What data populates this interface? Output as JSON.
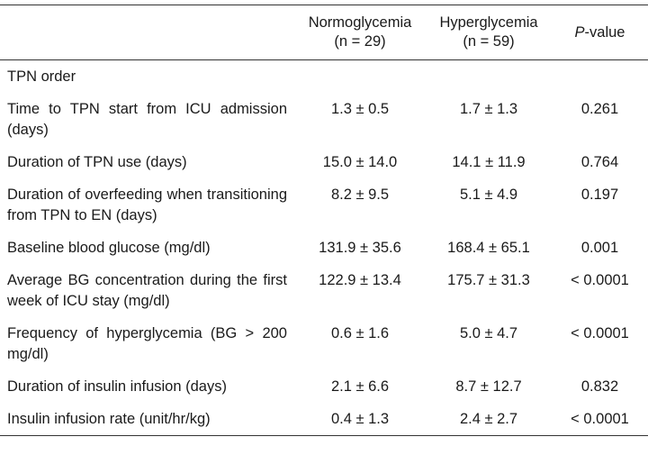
{
  "table": {
    "columns": [
      {
        "name": "Normoglycemia",
        "n": "(n = 29)"
      },
      {
        "name": "Hyperglycemia",
        "n": "(n = 59)"
      },
      {
        "italic": "P",
        "rest": "-value"
      }
    ],
    "section": "TPN order",
    "rows": [
      [
        "Time to TPN start from ICU admission (days)",
        "1.3 ± 0.5",
        "1.7 ± 1.3",
        "0.261"
      ],
      [
        "Duration of TPN use (days)",
        "15.0 ± 14.0",
        "14.1 ± 11.9",
        "0.764"
      ],
      [
        "Duration of overfeeding when transitioning from TPN to EN (days)",
        "8.2 ± 9.5",
        "5.1 ± 4.9",
        "0.197"
      ],
      [
        "Baseline blood glucose (mg/dl)",
        "131.9 ± 35.6",
        "168.4 ± 65.1",
        "0.001"
      ],
      [
        "Average BG concentration during the first week of ICU stay (mg/dl)",
        "122.9 ± 13.4",
        "175.7 ± 31.3",
        "< 0.0001"
      ],
      [
        "Frequency of hyperglycemia (BG > 200 mg/dl)",
        "0.6 ± 1.6",
        "5.0 ± 4.7",
        "< 0.0001"
      ],
      [
        "Duration of insulin infusion (days)",
        "2.1 ± 6.6",
        "8.7 ± 12.7",
        "0.832"
      ],
      [
        "Insulin infusion rate (unit/hr/kg)",
        "0.4 ± 1.3",
        "2.4 ± 2.7",
        "< 0.0001"
      ]
    ]
  }
}
